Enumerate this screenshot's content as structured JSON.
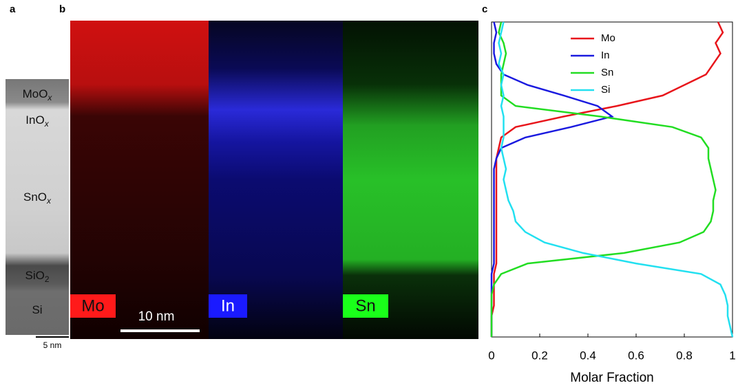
{
  "panel_labels": [
    "a",
    "b",
    "c"
  ],
  "tem": {
    "layers": [
      {
        "base": "MoO",
        "sub": "x"
      },
      {
        "base": "InO",
        "sub": "x"
      },
      {
        "base": "SnO",
        "sub": "x"
      },
      {
        "base": "SiO",
        "sub": "2"
      },
      {
        "base": "Si"
      }
    ],
    "scale_bar": "5 nm"
  },
  "eds": {
    "maps": [
      {
        "label": "Mo",
        "color": "#ff1a1a"
      },
      {
        "label": "In",
        "color": "#1a1aff"
      },
      {
        "label": "Sn",
        "color": "#1aff1a"
      }
    ],
    "scale_bar": "10 nm"
  },
  "chart_data": {
    "type": "line",
    "orientation": "horizontal",
    "xlabel": "Molar Fraction",
    "xlim": [
      0,
      1
    ],
    "xticks": [
      0,
      0.2,
      0.4,
      0.6,
      0.8,
      1
    ],
    "legend_loc": "upper center",
    "categories": [
      null,
      null,
      null,
      null,
      null,
      null,
      null,
      null,
      null,
      null,
      null,
      null,
      null,
      null,
      null,
      null,
      null,
      null,
      null,
      null,
      null,
      null,
      null,
      null,
      null,
      null,
      null,
      null,
      null,
      null,
      null
    ],
    "series": [
      {
        "name": "Mo",
        "color": "#e8151b",
        "values": [
          0.94,
          0.96,
          0.93,
          0.95,
          0.92,
          0.89,
          0.8,
          0.71,
          0.52,
          0.3,
          0.1,
          0.04,
          0.03,
          0.02,
          0.02,
          0.02,
          0.02,
          0.02,
          0.02,
          0.02,
          0.02,
          0.02,
          0.02,
          0.02,
          0.01,
          0.01,
          0.01,
          0.01,
          0.0,
          0.0,
          0.0
        ]
      },
      {
        "name": "In",
        "color": "#1a1adf",
        "values": [
          0.01,
          0.02,
          0.01,
          0.01,
          0.02,
          0.05,
          0.15,
          0.3,
          0.44,
          0.5,
          0.33,
          0.14,
          0.04,
          0.02,
          0.01,
          0.01,
          0.01,
          0.01,
          0.01,
          0.01,
          0.01,
          0.01,
          0.01,
          0.01,
          0.0,
          0.0,
          0.0,
          0.0,
          0.0,
          0.0,
          0.0
        ]
      },
      {
        "name": "Sn",
        "color": "#22dd22",
        "values": [
          0.04,
          0.03,
          0.05,
          0.06,
          0.05,
          0.04,
          0.04,
          0.04,
          0.1,
          0.45,
          0.75,
          0.87,
          0.9,
          0.9,
          0.91,
          0.92,
          0.93,
          0.92,
          0.92,
          0.91,
          0.88,
          0.78,
          0.55,
          0.15,
          0.04,
          0.01,
          0.0,
          0.0,
          0.0,
          0.0,
          0.0
        ]
      },
      {
        "name": "Si",
        "color": "#22e0f0",
        "values": [
          0.05,
          0.04,
          0.03,
          0.04,
          0.03,
          0.05,
          0.04,
          0.05,
          0.04,
          0.05,
          0.05,
          0.05,
          0.04,
          0.05,
          0.06,
          0.05,
          0.06,
          0.07,
          0.09,
          0.1,
          0.14,
          0.22,
          0.38,
          0.6,
          0.87,
          0.95,
          0.97,
          0.98,
          0.98,
          0.99,
          1.0
        ]
      }
    ]
  }
}
